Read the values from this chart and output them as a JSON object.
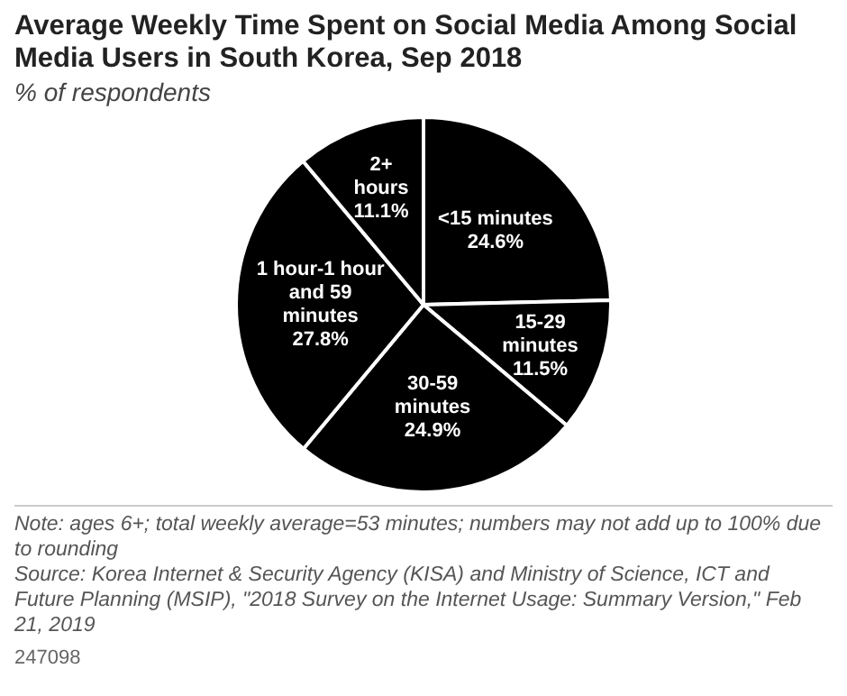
{
  "chart_data": {
    "type": "pie",
    "title": "Average Weekly Time Spent on Social Media Among Social Media Users in South Korea, Sep 2018",
    "subtitle": "% of respondents",
    "categories": [
      "<15 minutes",
      "15-29 minutes",
      "30-59 minutes",
      "1 hour-1 hour and 59 minutes",
      "2+ hours"
    ],
    "values": [
      24.6,
      11.5,
      24.9,
      27.8,
      11.1
    ],
    "value_labels": [
      "24.6%",
      "11.5%",
      "24.9%",
      "27.8%",
      "11.1%"
    ],
    "colors": [
      "#000000",
      "#000000",
      "#000000",
      "#000000",
      "#000000"
    ],
    "legend": false,
    "annotations": [
      "Note: ages 6+; total weekly average=53 minutes; numbers may not add up to 100% due to rounding",
      "Source: Korea Internet & Security Agency (KISA) and Ministry of Science, ICT and Future Planning (MSIP),  \"2018 Survey on the Internet Usage: Summary Version,\" Feb 21, 2019",
      "247098"
    ]
  }
}
